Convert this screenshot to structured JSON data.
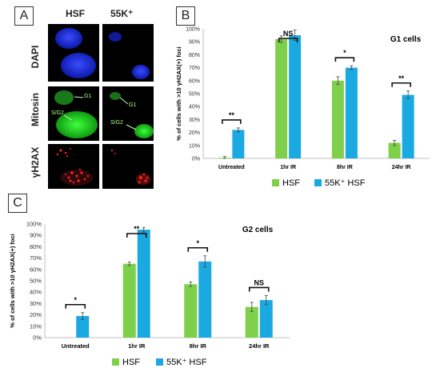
{
  "panels": {
    "a": "A",
    "b": "B",
    "c": "C"
  },
  "panel_a": {
    "column_labels": [
      "HSF",
      "55K⁺"
    ],
    "row_labels": [
      "DAPI",
      "Mitosin",
      "γH2AX"
    ],
    "cell_labels": {
      "g1": "G1",
      "s_g2": "S/G2"
    }
  },
  "colors": {
    "hsf": "#7ed04a",
    "k55": "#1ba9e1",
    "axis": "#c0c0c0"
  },
  "chart_data": [
    {
      "type": "bar",
      "title": "G1 cells",
      "ylabel": "% of cells with >10 γH2AX(+) foci",
      "ylim": [
        0,
        100
      ],
      "yticks": [
        "0%",
        "10%",
        "20%",
        "30%",
        "40%",
        "50%",
        "60%",
        "70%",
        "80%",
        "90%",
        "100%"
      ],
      "categories": [
        "Untreated",
        "1hr IR",
        "8hr IR",
        "24hr IR"
      ],
      "series": [
        {
          "name": "HSF",
          "values": [
            0.5,
            92,
            60,
            12
          ],
          "errors": [
            1,
            2.5,
            3,
            2
          ]
        },
        {
          "name": "55K⁺ HSF",
          "values": [
            22,
            95,
            70,
            49
          ],
          "errors": [
            1.5,
            4,
            1.5,
            3
          ]
        }
      ],
      "significance": [
        "**",
        "NS",
        "*",
        "**"
      ],
      "legend": "bottom"
    },
    {
      "type": "bar",
      "title": "G2 cells",
      "ylabel": "% of cells with >10 γH2AX(+) foci",
      "ylim": [
        0,
        100
      ],
      "yticks": [
        "0%",
        "10%",
        "20%",
        "30%",
        "40%",
        "50%",
        "60%",
        "70%",
        "80%",
        "90%",
        "100%"
      ],
      "categories": [
        "Untreated",
        "1hr IR",
        "8hr IR",
        "24hr IR"
      ],
      "series": [
        {
          "name": "HSF",
          "values": [
            0,
            65,
            47,
            27
          ],
          "errors": [
            0,
            1.5,
            2,
            4
          ]
        },
        {
          "name": "55K⁺ HSF",
          "values": [
            19,
            95,
            67,
            33
          ],
          "errors": [
            3,
            2,
            5,
            4
          ]
        }
      ],
      "significance": [
        "*",
        "**",
        "*",
        "NS"
      ],
      "legend": "bottom"
    }
  ]
}
